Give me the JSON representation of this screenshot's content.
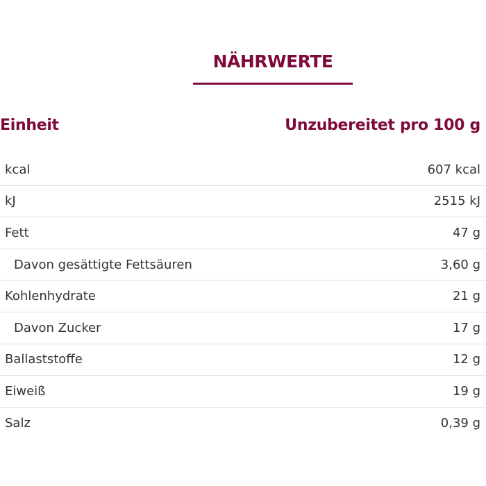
{
  "title": "NÄHRWERTE",
  "header": {
    "unit_label": "Einheit",
    "value_label": "Unzubereitet pro 100 g"
  },
  "accent_color": "#7d0a3a",
  "rows": [
    {
      "label": "kcal",
      "value": "607 kcal"
    },
    {
      "label": "kJ",
      "value": "2515 kJ"
    },
    {
      "label": "Fett",
      "value": "47 g"
    },
    {
      "label": "Davon gesättigte Fettsäuren",
      "value": "3,60 g"
    },
    {
      "label": "Kohlenhydrate",
      "value": "21 g"
    },
    {
      "label": "Davon Zucker",
      "value": "17 g"
    },
    {
      "label": "Ballaststoffe",
      "value": "12 g"
    },
    {
      "label": "Eiweiß",
      "value": "19 g"
    },
    {
      "label": "Salz",
      "value": "0,39 g"
    }
  ]
}
